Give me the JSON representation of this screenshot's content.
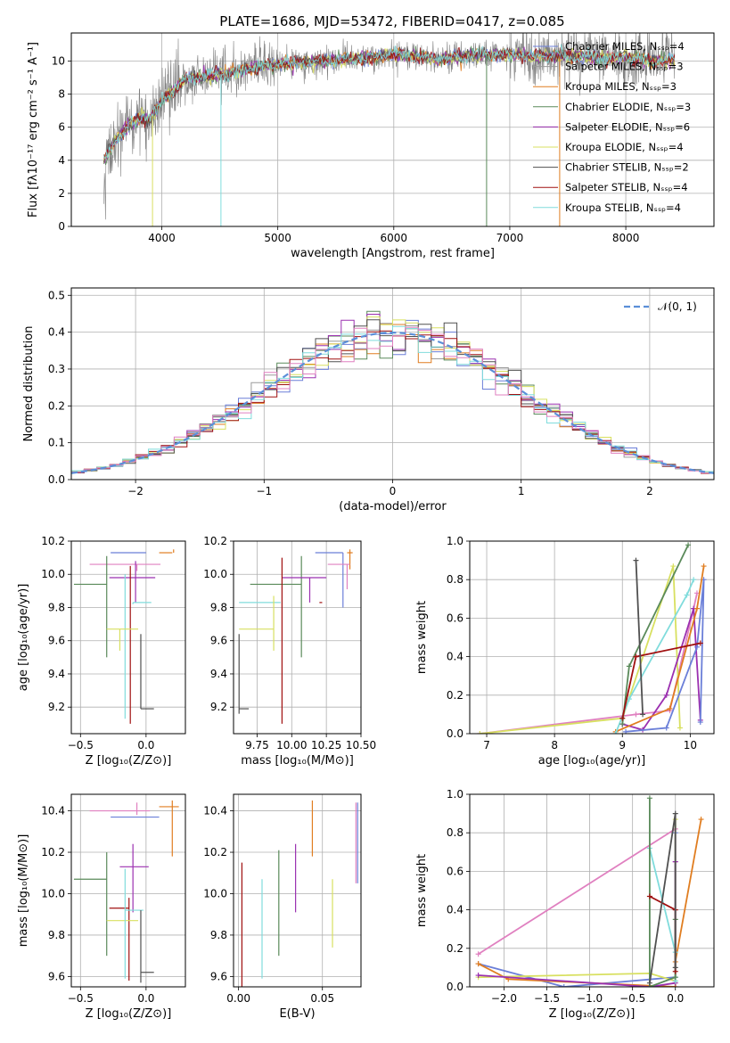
{
  "figure_title": "PLATE=1686, MJD=53472, FIBERID=0417, z=0.085",
  "colors": {
    "Chabrier MILES": "#6b7fd8",
    "Salpeter MILES": "#9a9a9a",
    "Kroupa MILES": "#e07d20",
    "Chabrier ELODIE": "#5a8a5a",
    "Salpeter ELODIE": "#9b30b0",
    "Kroupa ELODIE": "#d8e060",
    "Chabrier STELIB": "#505050",
    "Salpeter STELIB": "#a01010",
    "Kroupa STELIB": "#80dcdc",
    "Pink": "#e080c0",
    "Gauss": "#5b8fd8"
  },
  "chart_data": [
    {
      "id": "spectrum",
      "type": "line",
      "title": "PLATE=1686, MJD=53472, FIBERID=0417, z=0.085",
      "xlabel": "wavelength [Angstrom, rest frame]",
      "ylabel": "Flux [fλ10⁻¹⁷ erg cm⁻² s⁻¹ A⁻¹]",
      "xlim": [
        3220,
        8760
      ],
      "ylim": [
        0,
        11.7
      ],
      "xticks": [
        4000,
        5000,
        6000,
        7000,
        8000
      ],
      "yticks": [
        0,
        2,
        4,
        6,
        8,
        10
      ],
      "legend_position": "right",
      "legend": [
        {
          "label": "Chabrier MILES, Nₛₛₚ=4",
          "color": "#6b7fd8"
        },
        {
          "label": "Salpeter MILES, Nₛₛₚ=3",
          "color": "#9a9a9a"
        },
        {
          "label": "Kroupa MILES, Nₛₛₚ=3",
          "color": "#e07d20"
        },
        {
          "label": "Chabrier ELODIE, Nₛₛₚ=3",
          "color": "#5a8a5a"
        },
        {
          "label": "Salpeter ELODIE, Nₛₛₚ=6",
          "color": "#9b30b0"
        },
        {
          "label": "Kroupa ELODIE, Nₛₛₚ=4",
          "color": "#d8e060"
        },
        {
          "label": "Chabrier STELIB, Nₛₛₚ=2",
          "color": "#505050"
        },
        {
          "label": "Salpeter STELIB, Nₛₛₚ=4",
          "color": "#a01010"
        },
        {
          "label": "Kroupa STELIB, Nₛₛₚ=4",
          "color": "#80dcdc"
        }
      ],
      "continuum": {
        "x": [
          3500,
          3600,
          3700,
          3800,
          3900,
          4000,
          4100,
          4200,
          4400,
          4600,
          4800,
          5000,
          5200,
          5400,
          5600,
          5800,
          6000,
          6200,
          6400,
          6600,
          6800,
          7000,
          7200,
          7400,
          7600,
          7800,
          8000,
          8200,
          8400
        ],
        "y": [
          4.0,
          5.2,
          6.0,
          6.6,
          6.5,
          7.6,
          8.2,
          8.9,
          9.1,
          9.3,
          9.6,
          9.8,
          9.9,
          10.0,
          10.1,
          10.2,
          10.4,
          10.3,
          10.1,
          10.3,
          10.4,
          10.4,
          10.3,
          10.3,
          10.3,
          10.2,
          10.2,
          10.1,
          10.0
        ]
      }
    },
    {
      "id": "residuals",
      "type": "histogram",
      "xlabel": "(data-model)/error",
      "ylabel": "Normed distribution",
      "xlim": [
        -2.5,
        2.5
      ],
      "ylim": [
        0,
        0.52
      ],
      "xticks": [
        -2,
        -1,
        0,
        1,
        2
      ],
      "yticks": [
        0.0,
        0.1,
        0.2,
        0.3,
        0.4,
        0.5
      ],
      "legend": [
        {
          "label": "𝒩(0, 1)",
          "color": "#5b8fd8"
        }
      ],
      "bin_width": 0.1
    },
    {
      "id": "age-vs-Z",
      "type": "errorbar",
      "xlabel": "Z [log₁₀(Z/Z⊙)]",
      "ylabel": "age  [log₁₀(age/yr)]",
      "xlim": [
        -0.57,
        0.3
      ],
      "ylim": [
        9.04,
        10.2
      ],
      "xticks": [
        -0.5,
        0.0
      ],
      "xticklabels": [
        "−0.5",
        "0.0"
      ],
      "yticks": [
        9.2,
        9.4,
        9.6,
        9.8,
        10.0,
        10.2
      ],
      "points": [
        {
          "x": 0.0,
          "xerr": [
            0.27,
            0.0
          ],
          "y": 10.13,
          "yerr": [
            0.0,
            0.0
          ],
          "color": "#6b7fd8"
        },
        {
          "x": 0.2,
          "xerr": [
            0.1,
            0.0
          ],
          "y": 10.13,
          "yerr": [
            0.0,
            0.0
          ],
          "color": "#e07d20"
        },
        {
          "x": 0.21,
          "xerr": [
            0.0,
            0.0
          ],
          "y": 10.13,
          "yerr": [
            0.0,
            0.02
          ],
          "color": "#e07d20"
        },
        {
          "x": -0.07,
          "xerr": [
            0.36,
            0.18
          ],
          "y": 10.06,
          "yerr": [
            0.04,
            0.0
          ],
          "color": "#e080c0"
        },
        {
          "x": -0.3,
          "xerr": [
            0.25,
            0.0
          ],
          "y": 9.94,
          "yerr": [
            0.44,
            0.17
          ],
          "color": "#5a8a5a"
        },
        {
          "x": -0.08,
          "xerr": [
            0.2,
            0.15
          ],
          "y": 9.98,
          "yerr": [
            0.15,
            0.1
          ],
          "color": "#9b30b0"
        },
        {
          "x": -0.1,
          "xerr": [
            0.0,
            0.14
          ],
          "y": 9.83,
          "yerr": [
            0.01,
            0.0
          ],
          "color": "#80dcdc"
        },
        {
          "x": -0.16,
          "xerr": [
            0.0,
            0.0
          ],
          "y": 9.83,
          "yerr": [
            0.7,
            0.17
          ],
          "color": "#80dcdc"
        },
        {
          "x": -0.12,
          "xerr": [
            0.0,
            0.0
          ],
          "y": 10.0,
          "yerr": [
            0.9,
            0.05
          ],
          "color": "#a01010"
        },
        {
          "x": -0.2,
          "xerr": [
            0.1,
            0.14
          ],
          "y": 9.67,
          "yerr": [
            0.13,
            0.0
          ],
          "color": "#d8e060"
        },
        {
          "x": -0.04,
          "xerr": [
            0.0,
            0.1
          ],
          "y": 9.19,
          "yerr": [
            0.0,
            0.45
          ],
          "color": "#505050"
        }
      ]
    },
    {
      "id": "age-vs-mass",
      "type": "errorbar",
      "xlabel": "mass [log₁₀(M/M⊙)]",
      "xlim": [
        9.58,
        10.5
      ],
      "ylim": [
        9.04,
        10.2
      ],
      "xticks": [
        9.75,
        10.0,
        10.25,
        10.5
      ],
      "xticklabels": [
        "9.75",
        "10.00",
        "10.25",
        "10.50"
      ],
      "yticks": [
        9.2,
        9.4,
        9.6,
        9.8,
        10.0,
        10.2
      ],
      "points": [
        {
          "x": 10.37,
          "xerr": [
            0.2,
            0.0
          ],
          "y": 10.13,
          "yerr": [
            0.33,
            0.0
          ],
          "color": "#6b7fd8"
        },
        {
          "x": 10.42,
          "xerr": [
            0.02,
            0.02
          ],
          "y": 10.13,
          "yerr": [
            0.1,
            0.02
          ],
          "color": "#e07d20"
        },
        {
          "x": 10.4,
          "xerr": [
            0.14,
            0.02
          ],
          "y": 10.06,
          "yerr": [
            0.15,
            0.0
          ],
          "color": "#e080c0"
        },
        {
          "x": 10.07,
          "xerr": [
            0.37,
            0.0
          ],
          "y": 9.94,
          "yerr": [
            0.44,
            0.17
          ],
          "color": "#5a8a5a"
        },
        {
          "x": 10.13,
          "xerr": [
            0.2,
            0.12
          ],
          "y": 9.98,
          "yerr": [
            0.15,
            0.0
          ],
          "color": "#9b30b0"
        },
        {
          "x": 9.92,
          "xerr": [
            0.3,
            0.0
          ],
          "y": 9.83,
          "yerr": [
            0.0,
            0.0
          ],
          "color": "#80dcdc"
        },
        {
          "x": 10.2,
          "xerr": [
            0.0,
            0.02
          ],
          "y": 9.83,
          "yerr": [
            0.0,
            0.0
          ],
          "color": "#a01010"
        },
        {
          "x": 9.93,
          "xerr": [
            0.0,
            0.0
          ],
          "y": 10.0,
          "yerr": [
            0.9,
            0.1
          ],
          "color": "#a01010"
        },
        {
          "x": 9.87,
          "xerr": [
            0.25,
            0.0
          ],
          "y": 9.67,
          "yerr": [
            0.13,
            0.2
          ],
          "color": "#d8e060"
        },
        {
          "x": 9.62,
          "xerr": [
            0.0,
            0.07
          ],
          "y": 9.19,
          "yerr": [
            0.03,
            0.45
          ],
          "color": "#505050"
        }
      ]
    },
    {
      "id": "mass-weight-vs-age",
      "type": "line",
      "xlabel": "age  [log₁₀(age/yr)]",
      "ylabel": "mass weight",
      "xlim": [
        6.75,
        10.35
      ],
      "ylim": [
        0,
        1.0
      ],
      "xticks": [
        7,
        8,
        9,
        10
      ],
      "yticks": [
        0.0,
        0.2,
        0.4,
        0.6,
        0.8,
        1.0
      ],
      "series": [
        {
          "color": "#e080c0",
          "x": [
            6.9,
            9.2,
            9.7,
            10.05,
            10.1
          ],
          "y": [
            0.0,
            0.1,
            0.12,
            0.65,
            0.73
          ]
        },
        {
          "color": "#d8e060",
          "x": [
            6.9,
            9.0,
            9.75,
            9.85
          ],
          "y": [
            0.0,
            0.08,
            0.87,
            0.03
          ]
        },
        {
          "color": "#9b30b0",
          "x": [
            9.0,
            9.3,
            9.65,
            10.05,
            10.15
          ],
          "y": [
            0.05,
            0.02,
            0.2,
            0.65,
            0.07
          ]
        },
        {
          "color": "#6b7fd8",
          "x": [
            9.05,
            9.65,
            10.1,
            10.2,
            10.15
          ],
          "y": [
            0.01,
            0.03,
            0.45,
            0.8,
            0.06
          ]
        },
        {
          "color": "#e07d20",
          "x": [
            8.9,
            9.7,
            10.1,
            10.2
          ],
          "y": [
            0.01,
            0.13,
            0.65,
            0.87
          ]
        },
        {
          "color": "#80dcdc",
          "x": [
            8.9,
            9.1,
            9.95,
            10.05
          ],
          "y": [
            0.0,
            0.18,
            0.72,
            0.8
          ]
        },
        {
          "color": "#5a8a5a",
          "x": [
            9.0,
            9.1,
            9.97
          ],
          "y": [
            0.05,
            0.35,
            0.98
          ]
        },
        {
          "color": "#a01010",
          "x": [
            9.0,
            9.2,
            10.15
          ],
          "y": [
            0.08,
            0.4,
            0.47
          ]
        },
        {
          "color": "#505050",
          "x": [
            9.2,
            9.3
          ],
          "y": [
            0.9,
            0.1
          ]
        }
      ]
    },
    {
      "id": "mass-vs-Z",
      "type": "errorbar",
      "xlabel": "Z [log₁₀(Z/Z⊙)]",
      "ylabel": "mass [log₁₀(M/M⊙)]",
      "xlim": [
        -0.57,
        0.3
      ],
      "ylim": [
        9.55,
        10.48
      ],
      "xticks": [
        -0.5,
        0.0
      ],
      "xticklabels": [
        "−0.5",
        "0.0"
      ],
      "yticks": [
        9.6,
        9.8,
        10.0,
        10.2,
        10.4
      ],
      "points": [
        {
          "x": -0.07,
          "xerr": [
            0.36,
            0.1
          ],
          "y": 10.4,
          "yerr": [
            0.02,
            0.04
          ],
          "color": "#e080c0"
        },
        {
          "x": 0.2,
          "xerr": [
            0.1,
            0.05
          ],
          "y": 10.42,
          "yerr": [
            0.24,
            0.03
          ],
          "color": "#e07d20"
        },
        {
          "x": 0.0,
          "xerr": [
            0.27,
            0.1
          ],
          "y": 10.37,
          "yerr": [
            0.0,
            0.0
          ],
          "color": "#6b7fd8"
        },
        {
          "x": -0.1,
          "xerr": [
            0.1,
            0.12
          ],
          "y": 10.13,
          "yerr": [
            0.22,
            0.11
          ],
          "color": "#9b30b0"
        },
        {
          "x": -0.3,
          "xerr": [
            0.25,
            0.0
          ],
          "y": 10.07,
          "yerr": [
            0.37,
            0.13
          ],
          "color": "#5a8a5a"
        },
        {
          "x": -0.13,
          "xerr": [
            0.15,
            0.0
          ],
          "y": 9.93,
          "yerr": [
            0.35,
            0.05
          ],
          "color": "#a01010"
        },
        {
          "x": -0.07,
          "xerr": [
            0.0,
            0.0
          ],
          "y": 9.92,
          "yerr": [
            0.0,
            0.0
          ],
          "color": "#a01010"
        },
        {
          "x": -0.2,
          "xerr": [
            0.1,
            0.14
          ],
          "y": 9.87,
          "yerr": [
            0.0,
            0.0
          ],
          "color": "#d8e060"
        },
        {
          "x": -0.16,
          "xerr": [
            0.0,
            0.14
          ],
          "y": 9.92,
          "yerr": [
            0.33,
            0.2
          ],
          "color": "#80dcdc"
        },
        {
          "x": -0.04,
          "xerr": [
            0.0,
            0.1
          ],
          "y": 9.62,
          "yerr": [
            0.05,
            0.3
          ],
          "color": "#505050"
        }
      ]
    },
    {
      "id": "mass-vs-EBV",
      "type": "errorbar",
      "xlabel": "E(B-V)",
      "xlim": [
        -0.003,
        0.073
      ],
      "ylim": [
        9.55,
        10.48
      ],
      "xticks": [
        0.0,
        0.05
      ],
      "xticklabels": [
        "0.00",
        "0.05"
      ],
      "yticks": [
        9.6,
        9.8,
        10.0,
        10.2,
        10.4
      ],
      "points": [
        {
          "x": 0.002,
          "xerr": [
            0.0,
            0.0
          ],
          "y": 9.85,
          "yerr": [
            0.3,
            0.3
          ],
          "color": "#a01010"
        },
        {
          "x": 0.014,
          "xerr": [
            0.0,
            0.0
          ],
          "y": 9.83,
          "yerr": [
            0.24,
            0.24
          ],
          "color": "#80dcdc"
        },
        {
          "x": 0.024,
          "xerr": [
            0.0,
            0.0
          ],
          "y": 9.96,
          "yerr": [
            0.26,
            0.25
          ],
          "color": "#5a8a5a"
        },
        {
          "x": 0.034,
          "xerr": [
            0.0,
            0.0
          ],
          "y": 10.11,
          "yerr": [
            0.2,
            0.13
          ],
          "color": "#9b30b0"
        },
        {
          "x": 0.044,
          "xerr": [
            0.0,
            0.0
          ],
          "y": 10.32,
          "yerr": [
            0.14,
            0.13
          ],
          "color": "#e07d20"
        },
        {
          "x": 0.056,
          "xerr": [
            0.0,
            0.0
          ],
          "y": 9.84,
          "yerr": [
            0.1,
            0.23
          ],
          "color": "#d8e060"
        },
        {
          "x": 0.07,
          "xerr": [
            0.0,
            0.0
          ],
          "y": 10.25,
          "yerr": [
            0.2,
            0.19
          ],
          "color": "#e080c0"
        },
        {
          "x": 0.071,
          "xerr": [
            0.0,
            0.0
          ],
          "y": 10.25,
          "yerr": [
            0.2,
            0.19
          ],
          "color": "#6b7fd8"
        }
      ]
    },
    {
      "id": "mass-weight-vs-Z",
      "type": "line",
      "xlabel": "Z [log₁₀(Z/Z⊙)]",
      "ylabel": "mass weight",
      "xlim": [
        -2.4,
        0.45
      ],
      "ylim": [
        0,
        1.0
      ],
      "xticks": [
        -2.0,
        -1.5,
        -1.0,
        -0.5,
        0.0
      ],
      "xticklabels": [
        "−2.0",
        "−1.5",
        "−1.0",
        "−0.5",
        "0.0"
      ],
      "yticks": [
        0.0,
        0.2,
        0.4,
        0.6,
        0.8,
        1.0
      ],
      "series": [
        {
          "color": "#e080c0",
          "x": [
            -2.3,
            0.0,
            0.0
          ],
          "y": [
            0.17,
            0.82,
            0.65
          ]
        },
        {
          "color": "#6b7fd8",
          "x": [
            -2.3,
            -1.3,
            0.0,
            0.0
          ],
          "y": [
            0.12,
            0.0,
            0.05,
            0.8
          ]
        },
        {
          "color": "#e07d20",
          "x": [
            -2.3,
            -1.95,
            0.0,
            0.0,
            0.3
          ],
          "y": [
            0.12,
            0.04,
            0.0,
            0.13,
            0.87
          ]
        },
        {
          "color": "#d8e060",
          "x": [
            -2.3,
            -0.3,
            0.0,
            0.0
          ],
          "y": [
            0.05,
            0.07,
            0.03,
            0.87
          ]
        },
        {
          "color": "#9b30b0",
          "x": [
            -2.3,
            -0.3,
            0.0,
            0.0
          ],
          "y": [
            0.06,
            0.0,
            0.02,
            0.65
          ]
        },
        {
          "color": "#80dcdc",
          "x": [
            -0.3,
            0.0,
            0.0
          ],
          "y": [
            0.72,
            0.18,
            0.03
          ]
        },
        {
          "color": "#5a8a5a",
          "x": [
            -0.3,
            -0.3,
            0.0,
            0.0
          ],
          "y": [
            0.98,
            0.0,
            0.05,
            0.35
          ]
        },
        {
          "color": "#a01010",
          "x": [
            -0.3,
            0.0,
            0.0
          ],
          "y": [
            0.47,
            0.4,
            0.08
          ]
        },
        {
          "color": "#505050",
          "x": [
            -0.3,
            0.0,
            0.0
          ],
          "y": [
            0.02,
            0.9,
            0.1
          ]
        }
      ]
    }
  ]
}
